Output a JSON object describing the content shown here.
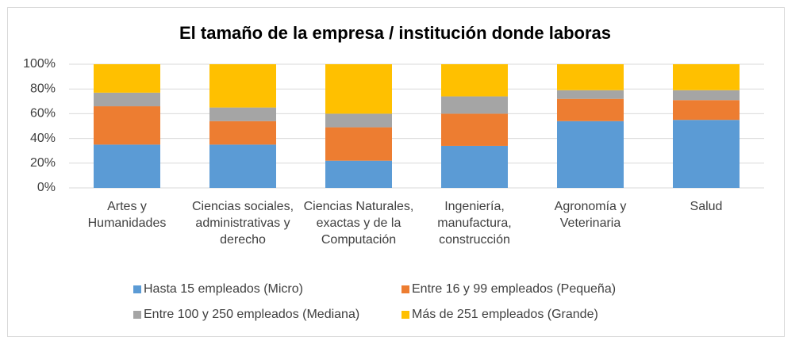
{
  "chart_data": {
    "type": "stacked_bar_100",
    "title": "El tamaño de la empresa / institución donde laboras",
    "categories": [
      "Artes y Humanidades",
      "Ciencias sociales, administrativas y derecho",
      "Ciencias Naturales, exactas y de la Computación",
      "Ingeniería, manufactura, construcción",
      "Agronomía y Veterinaria",
      "Salud"
    ],
    "series": [
      {
        "name": "Hasta 15 empleados (Micro)",
        "color": "#5b9bd5",
        "values": [
          35,
          35,
          22,
          34,
          54,
          55
        ]
      },
      {
        "name": "Entre 16 y 99 empleados (Pequeña)",
        "color": "#ed7d31",
        "values": [
          31,
          19,
          27,
          26,
          18,
          16
        ]
      },
      {
        "name": "Entre 100 y 250 empleados (Mediana)",
        "color": "#a5a5a5",
        "values": [
          11,
          11,
          11,
          14,
          7,
          8
        ]
      },
      {
        "name": "Más de 251 empleados (Grande)",
        "color": "#ffc000",
        "values": [
          23,
          35,
          40,
          26,
          21,
          21
        ]
      }
    ],
    "ylim": [
      0,
      100
    ],
    "yticks": [
      {
        "value": 0,
        "label": "0%"
      },
      {
        "value": 20,
        "label": "20%"
      },
      {
        "value": 40,
        "label": "40%"
      },
      {
        "value": 60,
        "label": "60%"
      },
      {
        "value": 80,
        "label": "80%"
      },
      {
        "value": 100,
        "label": "100%"
      }
    ],
    "grid": true,
    "legend": "bottom"
  }
}
